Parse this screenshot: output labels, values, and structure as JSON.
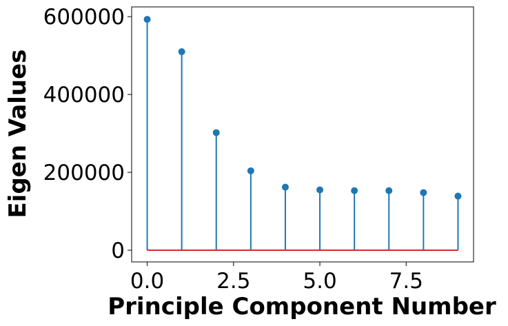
{
  "chart_data": {
    "type": "stem",
    "title": "",
    "xlabel": "Principle Component Number",
    "ylabel": "Eigen Values",
    "x": [
      0,
      1,
      2,
      3,
      4,
      5,
      6,
      7,
      8,
      9
    ],
    "values": [
      593000,
      510000,
      302000,
      204000,
      162000,
      155000,
      153000,
      153000,
      148000,
      139000
    ],
    "xlim": [
      -0.45,
      9.45
    ],
    "ylim": [
      -30000,
      625000
    ],
    "xticks": [
      0.0,
      2.5,
      5.0,
      7.5
    ],
    "xtick_labels": [
      "0.0",
      "2.5",
      "5.0",
      "7.5"
    ],
    "yticks": [
      0,
      200000,
      400000,
      600000
    ],
    "ytick_labels": [
      "0",
      "200000",
      "400000",
      "600000"
    ],
    "grid": false,
    "legend": "none",
    "colors": {
      "stem": "#1f77b4",
      "marker": "#1f77b4",
      "baseline": "#d62728",
      "axes": "#000000"
    }
  }
}
